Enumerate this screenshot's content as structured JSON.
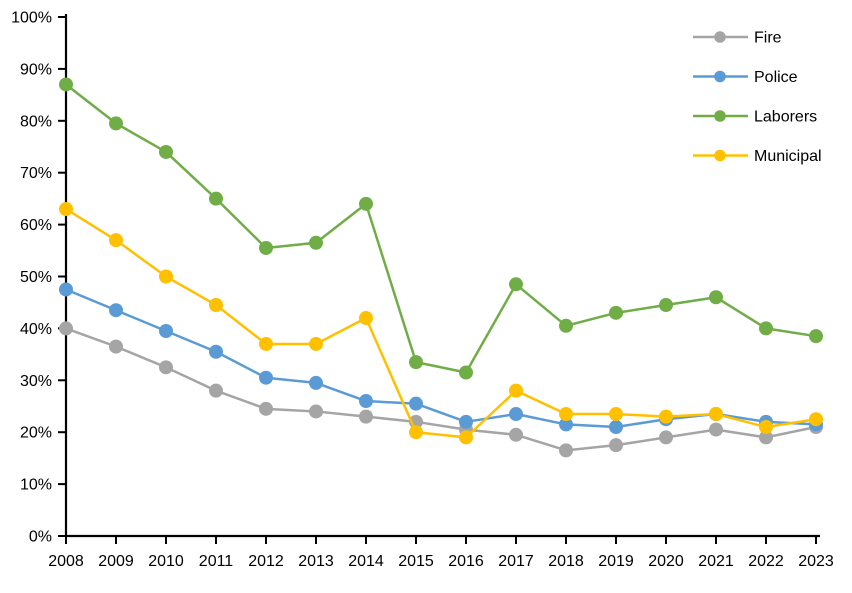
{
  "chart_data": {
    "type": "line",
    "x": [
      2008,
      2009,
      2010,
      2011,
      2012,
      2013,
      2014,
      2015,
      2016,
      2017,
      2018,
      2019,
      2020,
      2021,
      2022,
      2023
    ],
    "series": [
      {
        "name": "Fire",
        "color": "#A5A5A5",
        "values": [
          40.0,
          36.5,
          32.5,
          28.0,
          24.5,
          24.0,
          23.0,
          22.0,
          20.5,
          19.5,
          16.5,
          17.5,
          19.0,
          20.5,
          19.0,
          21.0
        ]
      },
      {
        "name": "Police",
        "color": "#5B9BD5",
        "values": [
          47.5,
          43.5,
          39.5,
          35.5,
          30.5,
          29.5,
          26.0,
          25.5,
          22.0,
          23.5,
          21.5,
          21.0,
          22.5,
          23.5,
          22.0,
          21.5
        ]
      },
      {
        "name": "Laborers",
        "color": "#70AD47",
        "values": [
          87.0,
          79.5,
          74.0,
          65.0,
          55.5,
          56.5,
          64.0,
          33.5,
          31.5,
          48.5,
          40.5,
          43.0,
          44.5,
          46.0,
          40.0,
          38.5
        ]
      },
      {
        "name": "Municipal",
        "color": "#FFC000",
        "values": [
          63.0,
          57.0,
          50.0,
          44.5,
          37.0,
          37.0,
          42.0,
          20.0,
          19.0,
          28.0,
          23.5,
          23.5,
          23.0,
          23.5,
          21.0,
          22.5
        ]
      }
    ],
    "title": "",
    "xlabel": "",
    "ylabel": "",
    "ylim": [
      0,
      100
    ],
    "ytick_step": 10,
    "ytick_suffix": "%",
    "grid": false,
    "legend_position": "top-right",
    "legend_items": [
      "Fire",
      "Police",
      "Laborers",
      "Municipal"
    ],
    "axis_color": "#000000",
    "background_color": "#FFFFFF"
  },
  "layout_text": {
    "y_tick_labels": [
      "0%",
      "10%",
      "20%",
      "30%",
      "40%",
      "50%",
      "60%",
      "70%",
      "80%",
      "90%",
      "100%"
    ],
    "x_tick_labels": [
      "2008",
      "2009",
      "2010",
      "2011",
      "2012",
      "2013",
      "2014",
      "2015",
      "2016",
      "2017",
      "2018",
      "2019",
      "2020",
      "2021",
      "2022",
      "2023"
    ]
  }
}
